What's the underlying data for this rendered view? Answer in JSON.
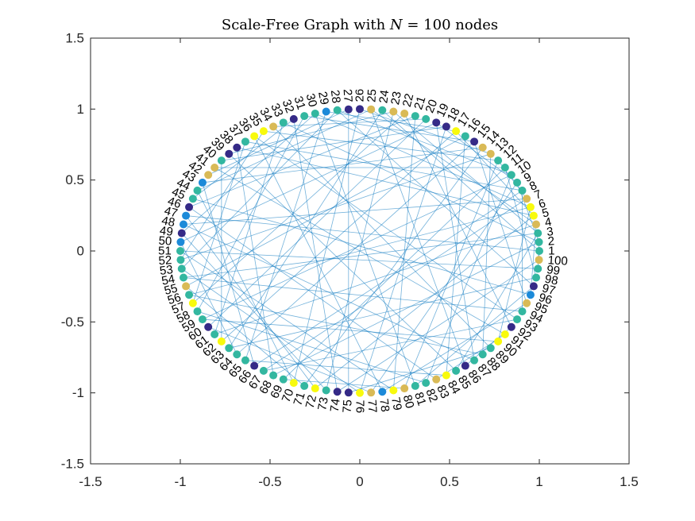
{
  "chart_data": {
    "type": "scatter",
    "title_parts": [
      "Scale-Free Graph with ",
      "N",
      " = 100 nodes"
    ],
    "xlabel": "",
    "ylabel": "",
    "xlim": [
      -1.5,
      1.5
    ],
    "ylim": [
      -1.5,
      1.5
    ],
    "xticks": [
      -1.5,
      -1,
      -0.5,
      0,
      0.5,
      1,
      1.5
    ],
    "yticks": [
      -1.5,
      -1,
      -0.5,
      0,
      0.5,
      1,
      1.5
    ],
    "xtick_labels": [
      "-1.5",
      "-1",
      "-0.5",
      "0",
      "0.5",
      "1",
      "1.5"
    ],
    "ytick_labels": [
      "-1.5",
      "-1",
      "-0.5",
      "0",
      "0.5",
      "1",
      "1.5"
    ],
    "grid": false,
    "layout": "circle",
    "node_count": 100,
    "node_radius": 1,
    "edge_color": "#0072BD",
    "node_palette": {
      "0": "#352A87",
      "1": "#1C8AD9",
      "2": "#33B7A0",
      "3": "#D9BA56",
      "4": "#F8FA0D"
    },
    "node_color_levels": [
      2,
      2,
      2,
      3,
      4,
      4,
      3,
      2,
      2,
      2,
      2,
      2,
      3,
      3,
      0,
      2,
      4,
      0,
      0,
      2,
      2,
      3,
      3,
      2,
      3,
      0,
      0,
      2,
      1,
      2,
      2,
      0,
      2,
      3,
      4,
      4,
      2,
      0,
      0,
      2,
      3,
      3,
      1,
      2,
      2,
      0,
      1,
      1,
      0,
      1,
      2,
      2,
      2,
      2,
      3,
      2,
      4,
      2,
      2,
      0,
      2,
      4,
      2,
      2,
      2,
      0,
      2,
      2,
      2,
      4,
      2,
      4,
      2,
      0,
      0,
      4,
      3,
      1,
      4,
      3,
      2,
      2,
      3,
      4,
      2,
      0,
      2,
      2,
      2,
      4,
      4,
      0,
      2,
      2,
      3,
      1,
      0,
      2,
      2,
      3
    ],
    "edges": [
      [
        1,
        24
      ],
      [
        1,
        47
      ],
      [
        1,
        100
      ],
      [
        2,
        9
      ],
      [
        2,
        33
      ],
      [
        2,
        68
      ],
      [
        2,
        99
      ],
      [
        3,
        23
      ],
      [
        3,
        54
      ],
      [
        3,
        85
      ],
      [
        4,
        25
      ],
      [
        4,
        61
      ],
      [
        4,
        96
      ],
      [
        5,
        17
      ],
      [
        5,
        38
      ],
      [
        5,
        72
      ],
      [
        6,
        30
      ],
      [
        6,
        56
      ],
      [
        6,
        90
      ],
      [
        7,
        12
      ],
      [
        7,
        48
      ],
      [
        7,
        67
      ],
      [
        8,
        37
      ],
      [
        8,
        66
      ],
      [
        8,
        94
      ],
      [
        9,
        19
      ],
      [
        9,
        77
      ],
      [
        10,
        28
      ],
      [
        10,
        59
      ],
      [
        10,
        82
      ],
      [
        11,
        41
      ],
      [
        11,
        69
      ],
      [
        11,
        98
      ],
      [
        12,
        35
      ],
      [
        12,
        80
      ],
      [
        13,
        26
      ],
      [
        13,
        52
      ],
      [
        13,
        88
      ],
      [
        14,
        43
      ],
      [
        14,
        71
      ],
      [
        15,
        31
      ],
      [
        15,
        64
      ],
      [
        15,
        95
      ],
      [
        16,
        55
      ],
      [
        16,
        84
      ],
      [
        17,
        29
      ],
      [
        17,
        62
      ],
      [
        18,
        40
      ],
      [
        18,
        76
      ],
      [
        19,
        50
      ],
      [
        19,
        87
      ],
      [
        20,
        34
      ],
      [
        20,
        60
      ],
      [
        21,
        46
      ],
      [
        21,
        79
      ],
      [
        22,
        57
      ],
      [
        22,
        92
      ],
      [
        23,
        39
      ],
      [
        23,
        73
      ],
      [
        24,
        63
      ],
      [
        25,
        44
      ],
      [
        25,
        86
      ],
      [
        26,
        70
      ],
      [
        27,
        42
      ],
      [
        27,
        75
      ],
      [
        28,
        53
      ],
      [
        28,
        97
      ],
      [
        29,
        65
      ],
      [
        30,
        49
      ],
      [
        30,
        81
      ],
      [
        31,
        58
      ],
      [
        32,
        45
      ],
      [
        32,
        74
      ],
      [
        33,
        61
      ],
      [
        34,
        89
      ],
      [
        35,
        52
      ],
      [
        36,
        78
      ],
      [
        36,
        93
      ],
      [
        37,
        57
      ],
      [
        38,
        68
      ],
      [
        39,
        85
      ],
      [
        40,
        62
      ],
      [
        41,
        91
      ],
      [
        43,
        66
      ],
      [
        44,
        70
      ],
      [
        45,
        96
      ],
      [
        46,
        83
      ],
      [
        47,
        72
      ],
      [
        48,
        87
      ],
      [
        49,
        73
      ],
      [
        50,
        64
      ],
      [
        51,
        79
      ],
      [
        51,
        99
      ],
      [
        53,
        76
      ],
      [
        54,
        94
      ],
      [
        55,
        71
      ],
      [
        56,
        88
      ],
      [
        58,
        82
      ],
      [
        59,
        90
      ],
      [
        60,
        77
      ],
      [
        63,
        98
      ],
      [
        65,
        84
      ],
      [
        67,
        93
      ],
      [
        69,
        80
      ],
      [
        74,
        100
      ],
      [
        75,
        89
      ],
      [
        78,
        95
      ],
      [
        81,
        97
      ],
      [
        83,
        91
      ],
      [
        86,
        92
      ]
    ]
  }
}
